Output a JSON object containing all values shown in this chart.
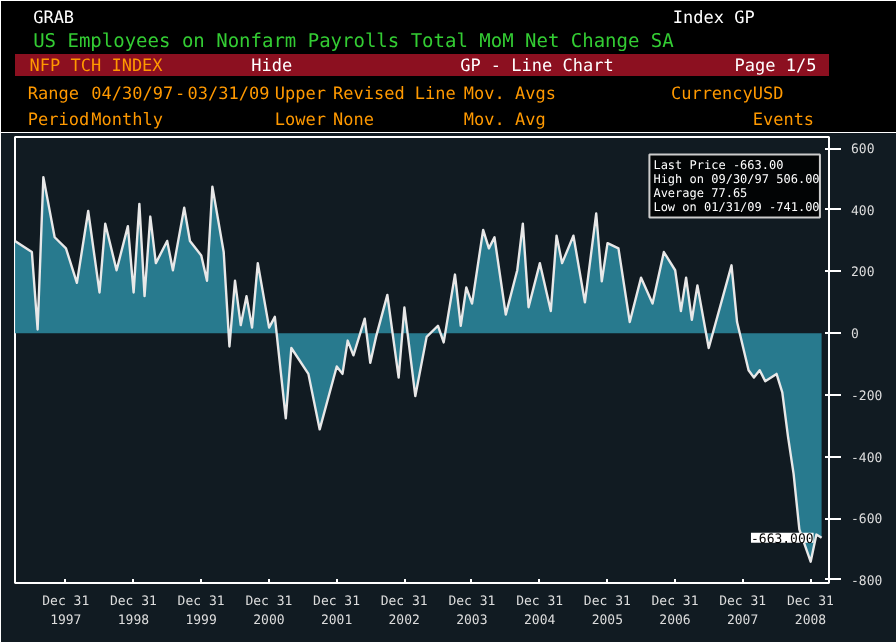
{
  "chart_data": {
    "type": "area",
    "title": "US Employees on Nonfarm Payrolls Total MoM Net Change SA",
    "x": [
      "1997-04",
      "1997-07",
      "1997-08",
      "1997-09",
      "1997-11",
      "1998-01",
      "1998-03",
      "1998-05",
      "1998-07",
      "1998-08",
      "1998-10",
      "1998-12",
      "1999-01",
      "1999-02",
      "1999-03",
      "1999-04",
      "1999-05",
      "1999-07",
      "1999-08",
      "1999-10",
      "1999-11",
      "2000-01",
      "2000-02",
      "2000-03",
      "2000-05",
      "2000-06",
      "2000-07",
      "2000-08",
      "2000-09",
      "2000-10",
      "2000-11",
      "2001-01",
      "2001-02",
      "2001-04",
      "2001-05",
      "2001-08",
      "2001-10",
      "2002-01",
      "2002-02",
      "2002-03",
      "2002-04",
      "2002-06",
      "2002-07",
      "2002-08",
      "2002-10",
      "2002-12",
      "2003-01",
      "2003-03",
      "2003-05",
      "2003-07",
      "2003-08",
      "2003-10",
      "2003-11",
      "2003-12",
      "2004-01",
      "2004-03",
      "2004-04",
      "2004-05",
      "2004-07",
      "2004-09",
      "2004-10",
      "2004-11",
      "2005-01",
      "2005-03",
      "2005-04",
      "2005-05",
      "2005-07",
      "2005-09",
      "2005-11",
      "2005-12",
      "2006-01",
      "2006-03",
      "2006-05",
      "2006-07",
      "2006-09",
      "2006-11",
      "2007-01",
      "2007-02",
      "2007-03",
      "2007-04",
      "2007-05",
      "2007-07",
      "2007-11",
      "2007-12",
      "2008-02",
      "2008-03",
      "2008-04",
      "2008-05",
      "2008-07",
      "2008-08",
      "2008-09",
      "2008-10",
      "2008-11",
      "2009-01",
      "2009-02",
      "2009-03"
    ],
    "series": [
      {
        "color": "#2a7f95",
        "values": [
          299,
          263,
          12,
          506,
          311,
          275,
          163,
          396,
          132,
          355,
          204,
          347,
          132,
          419,
          120,
          378,
          227,
          299,
          204,
          407,
          299,
          252,
          170,
          475,
          263,
          -43,
          170,
          26,
          120,
          18,
          227,
          18,
          53,
          -276,
          -48,
          -132,
          -312,
          -108,
          -132,
          -24,
          -72,
          47,
          -96,
          -12,
          124,
          -144,
          83,
          -204,
          -12,
          24,
          -30,
          190,
          24,
          148,
          96,
          335,
          275,
          311,
          60,
          204,
          355,
          84,
          227,
          72,
          316,
          227,
          316,
          100,
          388,
          168,
          292,
          275,
          36,
          180,
          96,
          263,
          204,
          72,
          180,
          43,
          155,
          -48,
          220,
          36,
          -120,
          -144,
          -120,
          -156,
          -132,
          -192,
          -336,
          -456,
          -636,
          -741,
          -653,
          -663
        ]
      }
    ],
    "xlim": [
      "1997-04",
      "2009-04-10"
    ],
    "xticks": [
      {
        "value": "1997-12-31",
        "label": "Dec 31 1997"
      },
      {
        "value": "1998-12-31",
        "label": "Dec 31 1998"
      },
      {
        "value": "1999-12-31",
        "label": "Dec 31 1999"
      },
      {
        "value": "2000-12-31",
        "label": "Dec 31 2000"
      },
      {
        "value": "2001-12-31",
        "label": "Dec 31 2001"
      },
      {
        "value": "2002-12-31",
        "label": "Dec 31 2002"
      },
      {
        "value": "2003-12-31",
        "label": "Dec 31 2003"
      },
      {
        "value": "2004-12-31",
        "label": "Dec 31 2004"
      },
      {
        "value": "2005-12-31",
        "label": "Dec 31 2005"
      },
      {
        "value": "2006-12-31",
        "label": "Dec 31 2006"
      },
      {
        "value": "2007-12-31",
        "label": "Dec 31 2007"
      },
      {
        "value": "2008-12-31",
        "label": "Dec 31 2008"
      }
    ],
    "ylim": [
      -810,
      636
    ],
    "yticks": [
      -800,
      -600,
      -400,
      -200,
      0,
      200,
      400,
      600
    ],
    "grid": false,
    "annotations": [
      "GRAB",
      "Index GP",
      "NFP TCH INDEX",
      "Hide",
      "GP - Line Chart",
      "Page 1/5",
      "Range",
      "04/30/97",
      "-",
      "03/31/09",
      "Upper",
      "Revised Line",
      "Mov. Avgs",
      "Currency",
      "USD",
      "Period",
      "Monthly",
      "Lower",
      "None",
      "Mov. Avg",
      "Events",
      "Last Price -663.00",
      "High on 09/30/97 506.00",
      "Average 77.65",
      "Low on 01/31/09 -741.00",
      {
        "text": "-663.000",
        "x": "2009-03",
        "y": -663
      }
    ]
  }
}
